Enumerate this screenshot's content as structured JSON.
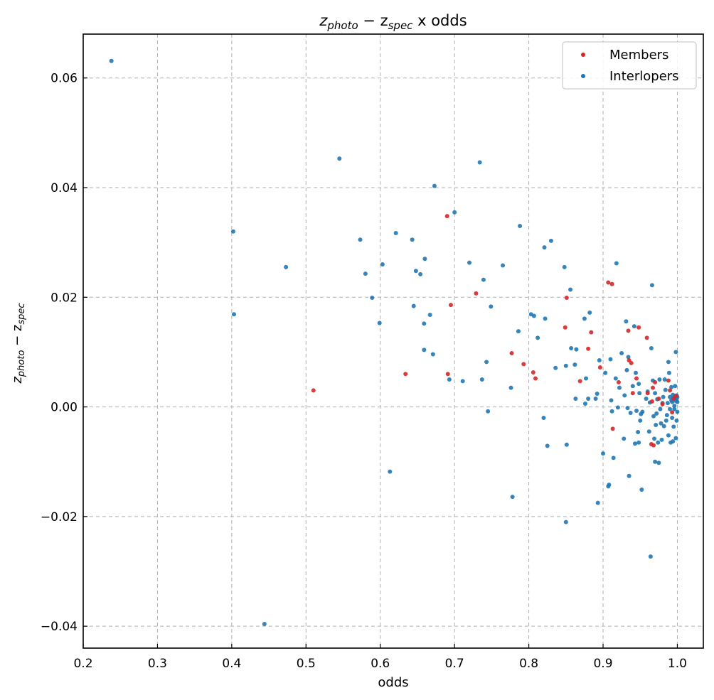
{
  "chart_data": {
    "type": "scatter",
    "title_main": "z",
    "title_sub1": "photo",
    "title_mid": " − z",
    "title_sub2": "spec",
    "title_tail": " x odds",
    "xlabel": "odds",
    "ylabel_main": "z",
    "ylabel_sub1": "photo",
    "ylabel_mid": " − z",
    "ylabel_sub2": "spec",
    "xlim": [
      0.2,
      1.035
    ],
    "ylim": [
      -0.044,
      0.068
    ],
    "xticks": [
      0.2,
      0.3,
      0.4,
      0.5,
      0.6,
      0.7,
      0.8,
      0.9,
      1.0
    ],
    "xtick_labels": [
      "0.2",
      "0.3",
      "0.4",
      "0.5",
      "0.6",
      "0.7",
      "0.8",
      "0.9",
      "1.0"
    ],
    "yticks": [
      -0.04,
      -0.02,
      0.0,
      0.02,
      0.04,
      0.06
    ],
    "ytick_labels": [
      "−0.04",
      "−0.02",
      "0.00",
      "0.02",
      "0.04",
      "0.06"
    ],
    "grid": true,
    "legend_position": "top-right",
    "series": [
      {
        "name": "Members",
        "color": "#d62728",
        "points": [
          [
            0.51,
            0.003
          ],
          [
            0.634,
            0.006
          ],
          [
            0.69,
            0.0348
          ],
          [
            0.691,
            0.006
          ],
          [
            0.695,
            0.0186
          ],
          [
            0.729,
            0.0207
          ],
          [
            0.777,
            0.0098
          ],
          [
            0.793,
            0.0078
          ],
          [
            0.806,
            0.0063
          ],
          [
            0.809,
            0.0052
          ],
          [
            0.849,
            0.0145
          ],
          [
            0.851,
            0.0199
          ],
          [
            0.869,
            0.0047
          ],
          [
            0.88,
            0.0106
          ],
          [
            0.884,
            0.0136
          ],
          [
            0.896,
            0.0072
          ],
          [
            0.907,
            0.0227
          ],
          [
            0.912,
            0.0224
          ],
          [
            0.913,
            -0.004
          ],
          [
            0.921,
            0.0045
          ],
          [
            0.934,
            0.0139
          ],
          [
            0.935,
            0.0085
          ],
          [
            0.938,
            0.008
          ],
          [
            0.94,
            0.0025
          ],
          [
            0.945,
            0.0052
          ],
          [
            0.948,
            0.0145
          ],
          [
            0.959,
            0.0126
          ],
          [
            0.96,
            0.0025
          ],
          [
            0.965,
            -0.0068
          ],
          [
            0.966,
            0.001
          ],
          [
            0.967,
            0.0035
          ],
          [
            0.968,
            -0.007
          ],
          [
            0.97,
            0.0045
          ],
          [
            0.975,
            0.0015
          ],
          [
            0.98,
            0.0005
          ],
          [
            0.988,
            0.0048
          ],
          [
            0.99,
            0.003
          ],
          [
            0.993,
            -0.001
          ],
          [
            0.995,
            0.0015
          ],
          [
            0.998,
            0.002
          ]
        ]
      },
      {
        "name": "Interlopers",
        "color": "#1f77b4",
        "points": [
          [
            0.238,
            0.0631
          ],
          [
            0.402,
            0.032
          ],
          [
            0.403,
            0.0169
          ],
          [
            0.444,
            -0.0396
          ],
          [
            0.473,
            0.0255
          ],
          [
            0.545,
            0.0453
          ],
          [
            0.573,
            0.0305
          ],
          [
            0.58,
            0.0243
          ],
          [
            0.589,
            0.0199
          ],
          [
            0.599,
            0.0153
          ],
          [
            0.603,
            0.026
          ],
          [
            0.613,
            -0.0118
          ],
          [
            0.621,
            0.0317
          ],
          [
            0.643,
            0.0305
          ],
          [
            0.645,
            0.0184
          ],
          [
            0.648,
            0.0248
          ],
          [
            0.654,
            0.0242
          ],
          [
            0.659,
            0.0152
          ],
          [
            0.659,
            0.0104
          ],
          [
            0.66,
            0.027
          ],
          [
            0.667,
            0.0168
          ],
          [
            0.671,
            0.0096
          ],
          [
            0.673,
            0.0403
          ],
          [
            0.693,
            0.005
          ],
          [
            0.7,
            0.0355
          ],
          [
            0.711,
            0.0047
          ],
          [
            0.72,
            0.0263
          ],
          [
            0.734,
            0.0446
          ],
          [
            0.737,
            0.005
          ],
          [
            0.739,
            0.0232
          ],
          [
            0.743,
            0.0082
          ],
          [
            0.745,
            -0.0008
          ],
          [
            0.749,
            0.0183
          ],
          [
            0.765,
            0.0258
          ],
          [
            0.776,
            0.0035
          ],
          [
            0.778,
            -0.0164
          ],
          [
            0.786,
            0.0138
          ],
          [
            0.788,
            0.033
          ],
          [
            0.803,
            0.0169
          ],
          [
            0.807,
            0.0166
          ],
          [
            0.812,
            0.0126
          ],
          [
            0.82,
            -0.002
          ],
          [
            0.821,
            0.0291
          ],
          [
            0.822,
            0.0161
          ],
          [
            0.825,
            -0.0071
          ],
          [
            0.83,
            0.0303
          ],
          [
            0.836,
            0.0071
          ],
          [
            0.848,
            0.0255
          ],
          [
            0.85,
            0.0075
          ],
          [
            0.851,
            -0.0069
          ],
          [
            0.85,
            -0.021
          ],
          [
            0.856,
            0.0214
          ],
          [
            0.857,
            0.0107
          ],
          [
            0.862,
            0.0077
          ],
          [
            0.863,
            0.0015
          ],
          [
            0.864,
            0.0105
          ],
          [
            0.875,
            0.0161
          ],
          [
            0.876,
            0.0006
          ],
          [
            0.877,
            0.0052
          ],
          [
            0.88,
            0.0015
          ],
          [
            0.882,
            0.0172
          ],
          [
            0.89,
            0.0015
          ],
          [
            0.892,
            0.0024
          ],
          [
            0.893,
            -0.0175
          ],
          [
            0.895,
            0.0085
          ],
          [
            0.9,
            -0.0085
          ],
          [
            0.903,
            0.0062
          ],
          [
            0.907,
            -0.0145
          ],
          [
            0.908,
            -0.0142
          ],
          [
            0.91,
            0.0087
          ],
          [
            0.911,
            0.0012
          ],
          [
            0.912,
            -0.0008
          ],
          [
            0.914,
            -0.0093
          ],
          [
            0.917,
            0.0052
          ],
          [
            0.918,
            0.0262
          ],
          [
            0.92,
            -0.0001
          ],
          [
            0.922,
            0.0035
          ],
          [
            0.925,
            0.0098
          ],
          [
            0.928,
            -0.0058
          ],
          [
            0.929,
            0.0021
          ],
          [
            0.931,
            0.0156
          ],
          [
            0.932,
            0.0067
          ],
          [
            0.933,
            -0.0002
          ],
          [
            0.934,
            0.0091
          ],
          [
            0.935,
            -0.0126
          ],
          [
            0.937,
            -0.0011
          ],
          [
            0.94,
            0.0038
          ],
          [
            0.942,
            0.0147
          ],
          [
            0.943,
            -0.0067
          ],
          [
            0.944,
            0.0062
          ],
          [
            0.945,
            -0.0007
          ],
          [
            0.947,
            -0.0046
          ],
          [
            0.948,
            0.0042
          ],
          [
            0.948,
            -0.0065
          ],
          [
            0.949,
            0.0025
          ],
          [
            0.95,
            -0.0025
          ],
          [
            0.951,
            -0.0013
          ],
          [
            0.952,
            -0.0151
          ],
          [
            0.953,
            -0.0009
          ],
          [
            0.958,
            0.0015
          ],
          [
            0.96,
            0.0028
          ],
          [
            0.962,
            -0.0045
          ],
          [
            0.963,
            0.0008
          ],
          [
            0.964,
            -0.0273
          ],
          [
            0.965,
            0.0107
          ],
          [
            0.966,
            0.0222
          ],
          [
            0.967,
            0.0048
          ],
          [
            0.968,
            -0.0017
          ],
          [
            0.969,
            -0.0058
          ],
          [
            0.97,
            -0.01
          ],
          [
            0.97,
            0.0025
          ],
          [
            0.971,
            -0.0033
          ],
          [
            0.972,
            -0.0012
          ],
          [
            0.973,
            0.0014
          ],
          [
            0.974,
            -0.0065
          ],
          [
            0.975,
            -0.0102
          ],
          [
            0.976,
            0.005
          ],
          [
            0.977,
            -0.0004
          ],
          [
            0.978,
            -0.003
          ],
          [
            0.979,
            -0.006
          ],
          [
            0.98,
            0.0007
          ],
          [
            0.981,
            0.0018
          ],
          [
            0.982,
            -0.0035
          ],
          [
            0.983,
            0.005
          ],
          [
            0.984,
            0.0031
          ],
          [
            0.985,
            -0.0025
          ],
          [
            0.986,
            -0.0015
          ],
          [
            0.987,
            0.0007
          ],
          [
            0.988,
            0.0082
          ],
          [
            0.988,
            -0.0052
          ],
          [
            0.989,
            0.0062
          ],
          [
            0.99,
            -0.0004
          ],
          [
            0.99,
            0.0018
          ],
          [
            0.991,
            -0.0065
          ],
          [
            0.992,
            0.0036
          ],
          [
            0.992,
            0.0012
          ],
          [
            0.993,
            -0.002
          ],
          [
            0.993,
            0.0009
          ],
          [
            0.994,
            0.0022
          ],
          [
            0.994,
            -0.0063
          ],
          [
            0.995,
            -0.0036
          ],
          [
            0.995,
            0.0016
          ],
          [
            0.996,
            0.0002
          ],
          [
            0.996,
            -0.0004
          ],
          [
            0.997,
            0.0019
          ],
          [
            0.997,
            0.0038
          ],
          [
            0.998,
            0.01
          ],
          [
            0.998,
            0.0011
          ],
          [
            0.998,
            -0.0057
          ],
          [
            0.999,
            -0.0025
          ],
          [
            0.999,
            0.0021
          ],
          [
            0.999,
            0.0014
          ],
          [
            1.0,
            -0.0009
          ],
          [
            1.0,
            0.0018
          ],
          [
            1.0,
            0.0009
          ]
        ]
      }
    ]
  }
}
